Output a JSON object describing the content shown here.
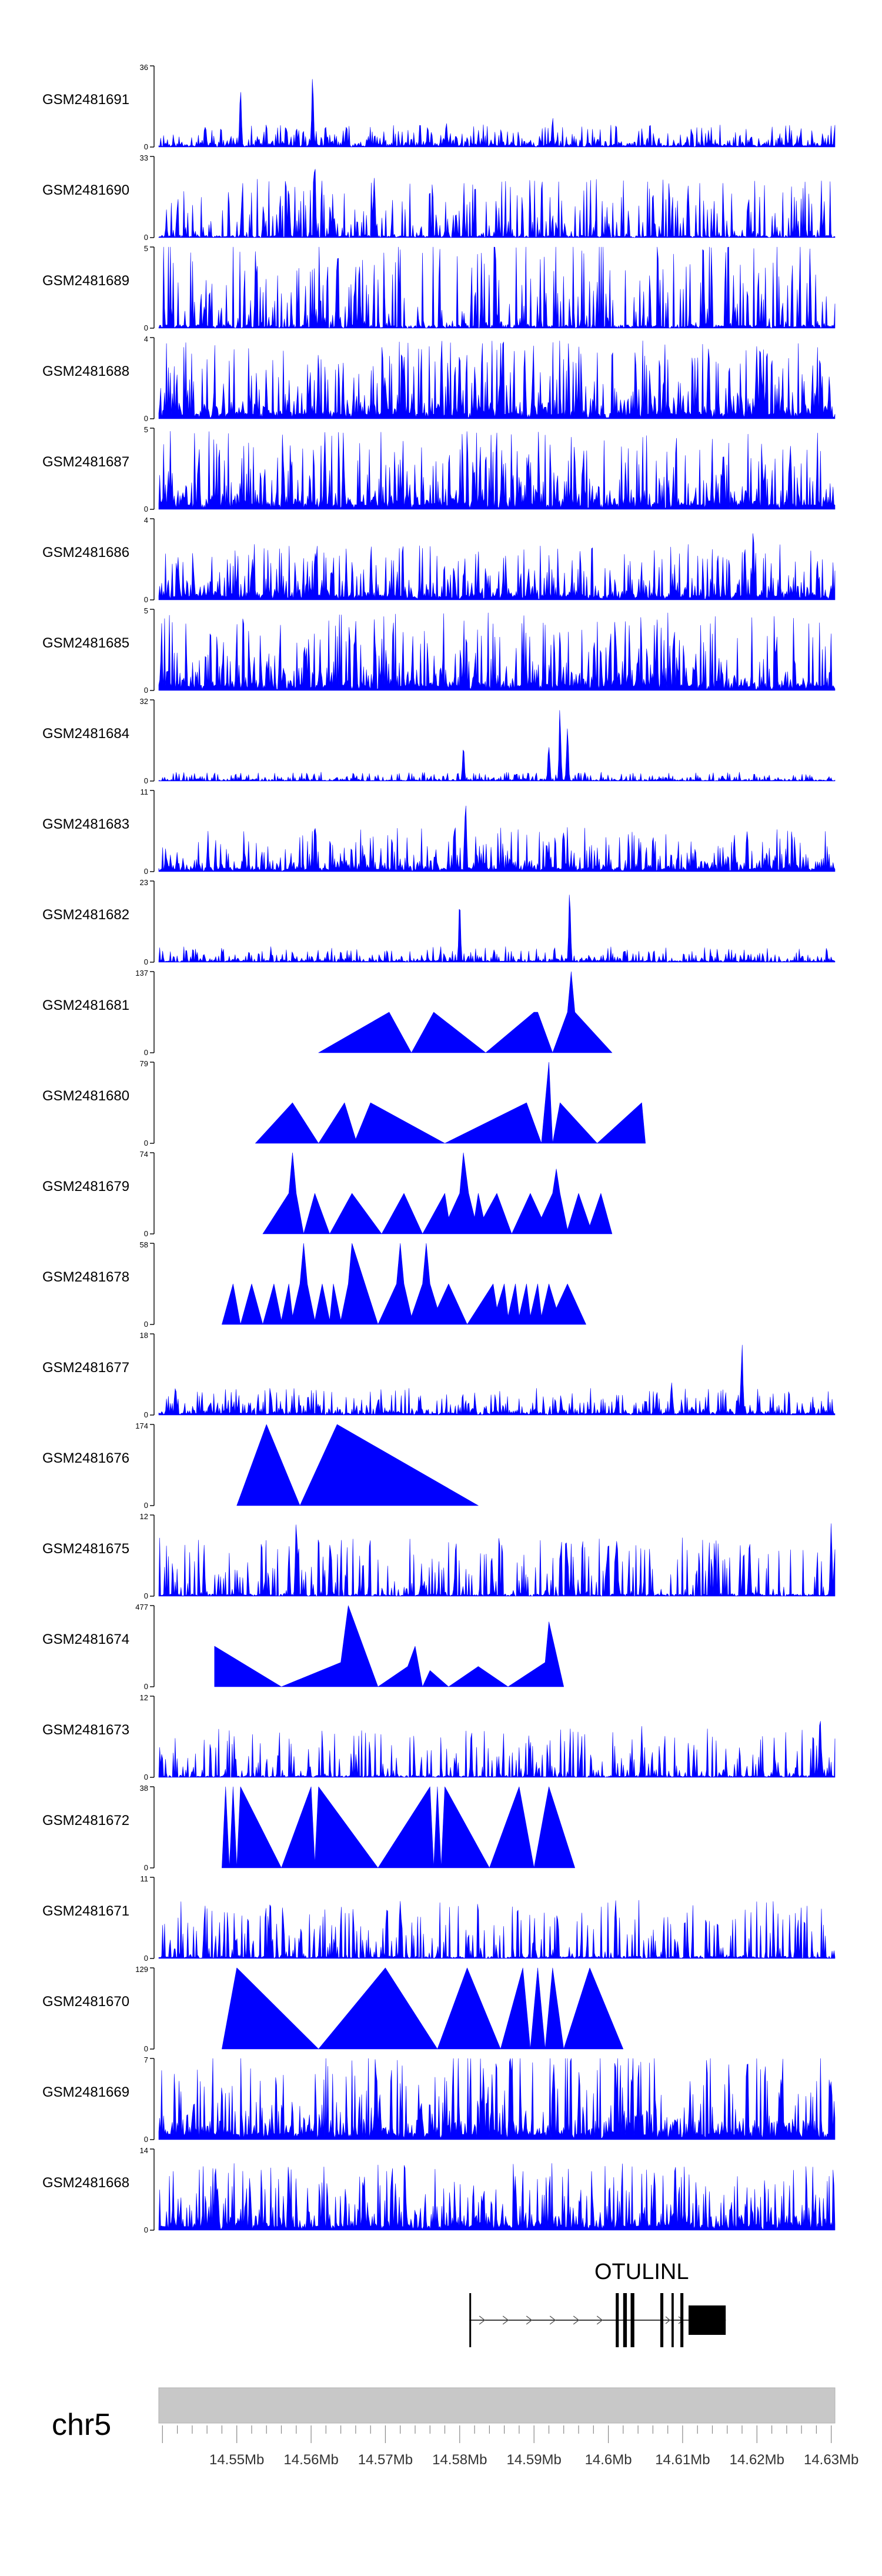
{
  "chart_data": {
    "type": "area",
    "fill_color": "#0000ff",
    "tracks": [
      {
        "name": "GSM2481691",
        "ymax": 36,
        "ymin": 0,
        "style": "dense",
        "seed": 11,
        "base": 0.1,
        "peaks": [
          [
            14.5505,
            0.75
          ],
          [
            14.5602,
            0.95
          ],
          [
            14.5782,
            0.35
          ],
          [
            14.5925,
            0.4
          ],
          [
            14.6305,
            0.35
          ]
        ]
      },
      {
        "name": "GSM2481690",
        "ymax": 33,
        "ymin": 0,
        "style": "sparse",
        "seed": 21,
        "base": 0.3,
        "peaks": [
          [
            14.5605,
            0.95
          ],
          [
            14.5685,
            0.95
          ],
          [
            14.557,
            0.75
          ]
        ]
      },
      {
        "name": "GSM2481689",
        "ymax": 5,
        "ymin": 0,
        "style": "sparse",
        "seed": 31,
        "base": 0.45,
        "peaks": [
          [
            14.5635,
            0.95
          ],
          [
            14.5665,
            0.9
          ]
        ]
      },
      {
        "name": "GSM2481688",
        "ymax": 4,
        "ymin": 0,
        "style": "dense",
        "seed": 41,
        "base": 0.35,
        "peaks": [
          [
            14.5725,
            0.95
          ],
          [
            14.6205,
            0.95
          ]
        ]
      },
      {
        "name": "GSM2481687",
        "ymax": 5,
        "ymin": 0,
        "style": "dense",
        "seed": 51,
        "base": 0.35,
        "peaks": [
          [
            14.6245,
            0.95
          ],
          [
            14.6155,
            0.9
          ]
        ]
      },
      {
        "name": "GSM2481686",
        "ymax": 4,
        "ymin": 0,
        "style": "dense",
        "seed": 61,
        "base": 0.25,
        "peaks": [
          [
            14.6195,
            0.95
          ]
        ]
      },
      {
        "name": "GSM2481685",
        "ymax": 5,
        "ymin": 0,
        "style": "dense",
        "seed": 71,
        "base": 0.35,
        "peaks": [
          [
            14.566,
            0.95
          ],
          [
            14.6065,
            0.85
          ]
        ]
      },
      {
        "name": "GSM2481684",
        "ymax": 32,
        "ymin": 0,
        "style": "dense",
        "seed": 81,
        "base": 0.04,
        "peaks": [
          [
            14.5805,
            0.45
          ],
          [
            14.5935,
            0.95
          ],
          [
            14.5945,
            0.75
          ],
          [
            14.592,
            0.55
          ]
        ]
      },
      {
        "name": "GSM2481683",
        "ymax": 11,
        "ymin": 0,
        "style": "dense",
        "seed": 91,
        "base": 0.2,
        "peaks": [
          [
            14.5808,
            0.95
          ],
          [
            14.594,
            0.6
          ]
        ]
      },
      {
        "name": "GSM2481682",
        "ymax": 23,
        "ymin": 0,
        "style": "dense",
        "seed": 101,
        "base": 0.07,
        "peaks": [
          [
            14.58,
            0.85
          ],
          [
            14.5948,
            0.95
          ]
        ]
      },
      {
        "name": "GSM2481681",
        "ymax": 137,
        "ymin": 0,
        "style": "tri",
        "seed": 111,
        "points": [
          [
            14.561,
            0
          ],
          [
            14.5705,
            0.5
          ],
          [
            14.5735,
            0
          ],
          [
            14.5765,
            0.5
          ],
          [
            14.5835,
            0
          ],
          [
            14.59,
            0.5
          ],
          [
            14.5905,
            0.5
          ],
          [
            14.5925,
            0
          ],
          [
            14.5945,
            0.5
          ],
          [
            14.595,
            1.0
          ],
          [
            14.5955,
            0.5
          ],
          [
            14.6005,
            0
          ]
        ]
      },
      {
        "name": "GSM2481680",
        "ymax": 79,
        "ymin": 0,
        "style": "tri",
        "seed": 121,
        "points": [
          [
            14.5525,
            0
          ],
          [
            14.5575,
            0.5
          ],
          [
            14.561,
            0
          ],
          [
            14.5645,
            0.5
          ],
          [
            14.566,
            0.05
          ],
          [
            14.568,
            0.5
          ],
          [
            14.578,
            0
          ],
          [
            14.589,
            0.5
          ],
          [
            14.591,
            0
          ],
          [
            14.592,
            1.0
          ],
          [
            14.5925,
            0
          ],
          [
            14.5935,
            0.5
          ],
          [
            14.5985,
            0
          ],
          [
            14.6045,
            0.5
          ],
          [
            14.605,
            0
          ]
        ]
      },
      {
        "name": "GSM2481679",
        "ymax": 74,
        "ymin": 0,
        "style": "tri",
        "seed": 131,
        "points": [
          [
            14.5535,
            0
          ],
          [
            14.557,
            0.5
          ],
          [
            14.5575,
            1.0
          ],
          [
            14.558,
            0.5
          ],
          [
            14.559,
            0
          ],
          [
            14.5605,
            0.5
          ],
          [
            14.5625,
            0
          ],
          [
            14.5655,
            0.5
          ],
          [
            14.5695,
            0
          ],
          [
            14.5725,
            0.5
          ],
          [
            14.575,
            0
          ],
          [
            14.578,
            0.5
          ],
          [
            14.5785,
            0.2
          ],
          [
            14.58,
            0.5
          ],
          [
            14.5805,
            1.0
          ],
          [
            14.5812,
            0.5
          ],
          [
            14.582,
            0.2
          ],
          [
            14.5825,
            0.5
          ],
          [
            14.5832,
            0.2
          ],
          [
            14.585,
            0.5
          ],
          [
            14.587,
            0
          ],
          [
            14.5895,
            0.5
          ],
          [
            14.591,
            0.2
          ],
          [
            14.5925,
            0.5
          ],
          [
            14.593,
            0.8
          ],
          [
            14.5935,
            0.5
          ],
          [
            14.5945,
            0.05
          ],
          [
            14.596,
            0.5
          ],
          [
            14.5975,
            0.1
          ],
          [
            14.599,
            0.5
          ],
          [
            14.6005,
            0
          ]
        ]
      },
      {
        "name": "GSM2481678",
        "ymax": 58,
        "ymin": 0,
        "style": "tri",
        "seed": 141,
        "points": [
          [
            14.548,
            0
          ],
          [
            14.5495,
            0.5
          ],
          [
            14.5505,
            0
          ],
          [
            14.552,
            0.5
          ],
          [
            14.5535,
            0
          ],
          [
            14.555,
            0.5
          ],
          [
            14.556,
            0.05
          ],
          [
            14.557,
            0.5
          ],
          [
            14.5575,
            0.1
          ],
          [
            14.5585,
            0.5
          ],
          [
            14.559,
            1.0
          ],
          [
            14.5595,
            0.5
          ],
          [
            14.5605,
            0.05
          ],
          [
            14.5615,
            0.5
          ],
          [
            14.5625,
            0.05
          ],
          [
            14.563,
            0.5
          ],
          [
            14.564,
            0.05
          ],
          [
            14.565,
            0.5
          ],
          [
            14.5655,
            1.0
          ],
          [
            14.569,
            0
          ],
          [
            14.5715,
            0.5
          ],
          [
            14.572,
            1.0
          ],
          [
            14.5725,
            0.5
          ],
          [
            14.5735,
            0.1
          ],
          [
            14.575,
            0.5
          ],
          [
            14.5755,
            1.0
          ],
          [
            14.576,
            0.5
          ],
          [
            14.577,
            0.2
          ],
          [
            14.5785,
            0.5
          ],
          [
            14.581,
            0
          ],
          [
            14.5845,
            0.5
          ],
          [
            14.585,
            0.2
          ],
          [
            14.586,
            0.5
          ],
          [
            14.5865,
            0.1
          ],
          [
            14.5875,
            0.5
          ],
          [
            14.588,
            0.1
          ],
          [
            14.589,
            0.5
          ],
          [
            14.5895,
            0.1
          ],
          [
            14.5905,
            0.5
          ],
          [
            14.591,
            0.1
          ],
          [
            14.592,
            0.5
          ],
          [
            14.593,
            0.2
          ],
          [
            14.5945,
            0.5
          ],
          [
            14.597,
            0
          ]
        ]
      },
      {
        "name": "GSM2481677",
        "ymax": 18,
        "ymin": 0,
        "style": "dense",
        "seed": 151,
        "base": 0.12,
        "peaks": [
          [
            14.618,
            0.95
          ],
          [
            14.6085,
            0.5
          ]
        ]
      },
      {
        "name": "GSM2481676",
        "ymax": 174,
        "ymin": 0,
        "style": "tri",
        "seed": 161,
        "points": [
          [
            14.55,
            0
          ],
          [
            14.554,
            1.0
          ],
          [
            14.5585,
            0
          ],
          [
            14.5635,
            1.0
          ],
          [
            14.5825,
            0
          ]
        ]
      },
      {
        "name": "GSM2481675",
        "ymax": 12,
        "ymin": 0,
        "style": "sparse",
        "seed": 171,
        "base": 0.3,
        "peaks": [
          [
            14.558,
            0.95
          ],
          [
            14.619,
            0.85
          ],
          [
            14.63,
            0.95
          ]
        ]
      },
      {
        "name": "GSM2481674",
        "ymax": 477,
        "ymin": 0,
        "style": "tri",
        "seed": 181,
        "points": [
          [
            14.547,
            0.5
          ],
          [
            14.556,
            0
          ],
          [
            14.564,
            0.3
          ],
          [
            14.565,
            1.0
          ],
          [
            14.569,
            0
          ],
          [
            14.573,
            0.25
          ],
          [
            14.574,
            0.5
          ],
          [
            14.575,
            0
          ],
          [
            14.576,
            0.2
          ],
          [
            14.5785,
            0
          ],
          [
            14.5825,
            0.25
          ],
          [
            14.5865,
            0
          ],
          [
            14.5915,
            0.3
          ],
          [
            14.592,
            0.8
          ],
          [
            14.594,
            0
          ]
        ]
      },
      {
        "name": "GSM2481673",
        "ymax": 12,
        "ymin": 0,
        "style": "sparse",
        "seed": 191,
        "base": 0.25,
        "peaks": [
          [
            14.6285,
            0.95
          ],
          [
            14.6045,
            0.65
          ]
        ]
      },
      {
        "name": "GSM2481672",
        "ymax": 38,
        "ymin": 0,
        "style": "tri",
        "seed": 201,
        "points": [
          [
            14.548,
            0
          ],
          [
            14.5485,
            1.0
          ],
          [
            14.549,
            0
          ],
          [
            14.5495,
            1.0
          ],
          [
            14.55,
            0
          ],
          [
            14.5505,
            1.0
          ],
          [
            14.556,
            0
          ],
          [
            14.56,
            1.0
          ],
          [
            14.5605,
            0.05
          ],
          [
            14.561,
            1.0
          ],
          [
            14.569,
            0
          ],
          [
            14.576,
            1.0
          ],
          [
            14.5765,
            0
          ],
          [
            14.577,
            1.0
          ],
          [
            14.5775,
            0
          ],
          [
            14.578,
            1.0
          ],
          [
            14.584,
            0
          ],
          [
            14.588,
            1.0
          ],
          [
            14.59,
            0
          ],
          [
            14.592,
            1.0
          ],
          [
            14.5955,
            0
          ]
        ]
      },
      {
        "name": "GSM2481671",
        "ymax": 11,
        "ymin": 0,
        "style": "sparse",
        "seed": 211,
        "base": 0.3,
        "peaks": [
          [
            14.5545,
            0.95
          ],
          [
            14.572,
            0.85
          ]
        ]
      },
      {
        "name": "GSM2481670",
        "ymax": 129,
        "ymin": 0,
        "style": "tri",
        "seed": 221,
        "points": [
          [
            14.548,
            0
          ],
          [
            14.55,
            1.0
          ],
          [
            14.561,
            0
          ],
          [
            14.57,
            1.0
          ],
          [
            14.577,
            0
          ],
          [
            14.581,
            1.0
          ],
          [
            14.5855,
            0
          ],
          [
            14.5885,
            1.0
          ],
          [
            14.5895,
            0
          ],
          [
            14.5905,
            1.0
          ],
          [
            14.5915,
            0
          ],
          [
            14.5925,
            1.0
          ],
          [
            14.594,
            0
          ],
          [
            14.5975,
            1.0
          ],
          [
            14.602,
            0
          ]
        ]
      },
      {
        "name": "GSM2481669",
        "ymax": 7,
        "ymin": 0,
        "style": "dense",
        "seed": 231,
        "base": 0.4,
        "peaks": [
          [
            14.587,
            0.95
          ],
          [
            14.63,
            0.9
          ]
        ]
      },
      {
        "name": "GSM2481668",
        "ymax": 14,
        "ymin": 0,
        "style": "dense",
        "seed": 241,
        "base": 0.3,
        "peaks": [
          [
            14.609,
            0.95
          ],
          [
            14.5875,
            0.75
          ]
        ]
      }
    ],
    "gene": {
      "name": "OTULINL",
      "start": 14.5813,
      "end": 14.6158,
      "strand": "+",
      "exons": [
        [
          14.5813,
          14.5815
        ],
        [
          14.601,
          14.6014
        ],
        [
          14.602,
          14.6025
        ],
        [
          14.603,
          14.6035
        ],
        [
          14.607,
          14.6074
        ],
        [
          14.6085,
          14.6088
        ],
        [
          14.6097,
          14.6101
        ],
        [
          14.6108,
          14.6158
        ]
      ]
    },
    "axis": {
      "chromosome": "chr5",
      "range_mb": [
        14.5395,
        14.6305
      ],
      "tick_labels": [
        "14.55Mb",
        "14.56Mb",
        "14.57Mb",
        "14.58Mb",
        "14.59Mb",
        "14.6Mb",
        "14.61Mb",
        "14.62Mb",
        "14.63Mb"
      ],
      "tick_values": [
        14.55,
        14.56,
        14.57,
        14.58,
        14.59,
        14.6,
        14.61,
        14.62,
        14.63
      ],
      "minor_tick_step": 0.002
    }
  }
}
